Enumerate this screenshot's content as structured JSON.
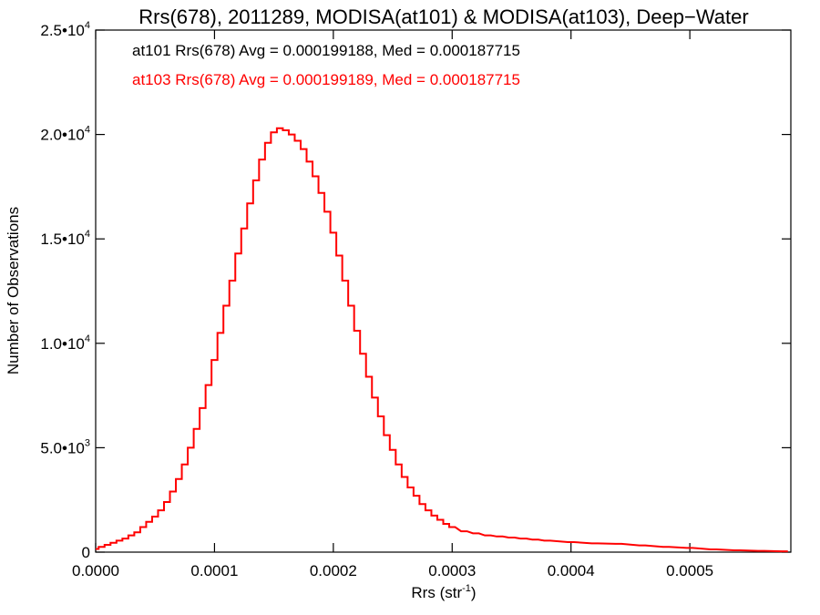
{
  "chart_data": {
    "type": "line",
    "title": "Rrs(678), 2011289, MODISA(at101) & MODISA(at103), Deep−Water",
    "xlabel_main": "Rrs (str",
    "xlabel_sup": "-1",
    "xlabel_close": ")",
    "ylabel": "Number of Observations",
    "xlim": [
      0.0,
      0.000585
    ],
    "ylim": [
      0,
      25000
    ],
    "x_ticks": [
      {
        "value": 0.0,
        "label": "0.0000"
      },
      {
        "value": 0.0001,
        "label": "0.0001"
      },
      {
        "value": 0.0002,
        "label": "0.0002"
      },
      {
        "value": 0.0003,
        "label": "0.0003"
      },
      {
        "value": 0.0004,
        "label": "0.0004"
      },
      {
        "value": 0.0005,
        "label": "0.0005"
      }
    ],
    "y_ticks": [
      {
        "value": 0,
        "mant": "0",
        "exp": ""
      },
      {
        "value": 5000,
        "mant": "5.0•10",
        "exp": "3"
      },
      {
        "value": 10000,
        "mant": "1.0•10",
        "exp": "4"
      },
      {
        "value": 15000,
        "mant": "1.5•10",
        "exp": "4"
      },
      {
        "value": 20000,
        "mant": "2.0•10",
        "exp": "4"
      },
      {
        "value": 25000,
        "mant": "2.5•10",
        "exp": "4"
      }
    ],
    "annotations": [
      {
        "text": "at101 Rrs(678) Avg = 0.000199188, Med = 0.000187715",
        "color": "#000000"
      },
      {
        "text": "at103 Rrs(678) Avg = 0.000199189, Med = 0.000187715",
        "color": "#ff0000"
      }
    ],
    "series": [
      {
        "color": "#ff0000",
        "x": [
          0.0,
          5e-06,
          1e-05,
          1.5e-05,
          2e-05,
          2.5e-05,
          3e-05,
          3.5e-05,
          4e-05,
          4.5e-05,
          5e-05,
          5.5e-05,
          6e-05,
          6.5e-05,
          7e-05,
          7.5e-05,
          8e-05,
          8.5e-05,
          9e-05,
          9.5e-05,
          0.0001,
          0.000105,
          0.00011,
          0.000115,
          0.00012,
          0.000125,
          0.00013,
          0.000135,
          0.00014,
          0.000145,
          0.00015,
          0.000155,
          0.00016,
          0.000165,
          0.00017,
          0.000175,
          0.00018,
          0.000185,
          0.00019,
          0.000195,
          0.0002,
          0.000205,
          0.00021,
          0.000215,
          0.00022,
          0.000225,
          0.00023,
          0.000235,
          0.00024,
          0.000245,
          0.00025,
          0.000255,
          0.00026,
          0.000265,
          0.00027,
          0.000275,
          0.00028,
          0.000285,
          0.00029,
          0.000295,
          0.0003,
          0.00031,
          0.00032,
          0.00033,
          0.00034,
          0.00035,
          0.00036,
          0.00037,
          0.00038,
          0.0004,
          0.00042,
          0.00044,
          0.00046,
          0.00048,
          0.0005,
          0.00052,
          0.00054,
          0.00056,
          0.00058
        ],
        "y": [
          150,
          250,
          350,
          450,
          550,
          650,
          800,
          950,
          1200,
          1450,
          1700,
          2000,
          2400,
          2900,
          3500,
          4200,
          5000,
          5900,
          6900,
          8000,
          9200,
          10500,
          11800,
          13000,
          14300,
          15500,
          16700,
          17800,
          18800,
          19600,
          20100,
          20300,
          20200,
          20000,
          19700,
          19300,
          18700,
          18000,
          17200,
          16300,
          15300,
          14200,
          13000,
          11800,
          10600,
          9500,
          8400,
          7400,
          6500,
          5600,
          4900,
          4200,
          3600,
          3100,
          2700,
          2300,
          2000,
          1750,
          1550,
          1350,
          1200,
          1000,
          900,
          800,
          750,
          700,
          650,
          600,
          550,
          480,
          420,
          400,
          320,
          250,
          200,
          130,
          90,
          60,
          40
        ]
      }
    ]
  }
}
